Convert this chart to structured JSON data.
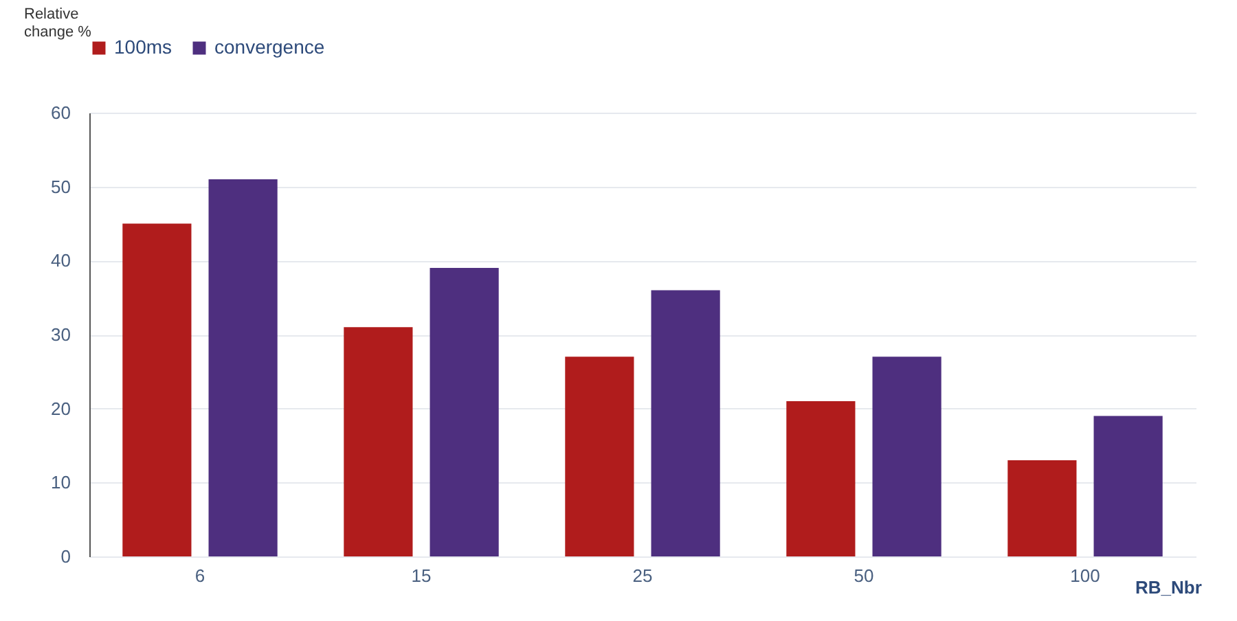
{
  "chart_data": {
    "type": "bar",
    "xlabel": "RB_Nbr",
    "ylabel": "Relative change %",
    "categories": [
      "6",
      "15",
      "25",
      "50",
      "100"
    ],
    "series": [
      {
        "name": "100ms",
        "color": "#b01c1c",
        "values": [
          45,
          31,
          27,
          21,
          13
        ]
      },
      {
        "name": "convergence",
        "color": "#4e2f7f",
        "values": [
          51,
          39,
          36,
          27,
          19
        ]
      }
    ],
    "ylim": [
      0,
      60
    ],
    "yticks": [
      0,
      10,
      20,
      30,
      40,
      50,
      60
    ],
    "grid": "y",
    "legend": "top"
  }
}
